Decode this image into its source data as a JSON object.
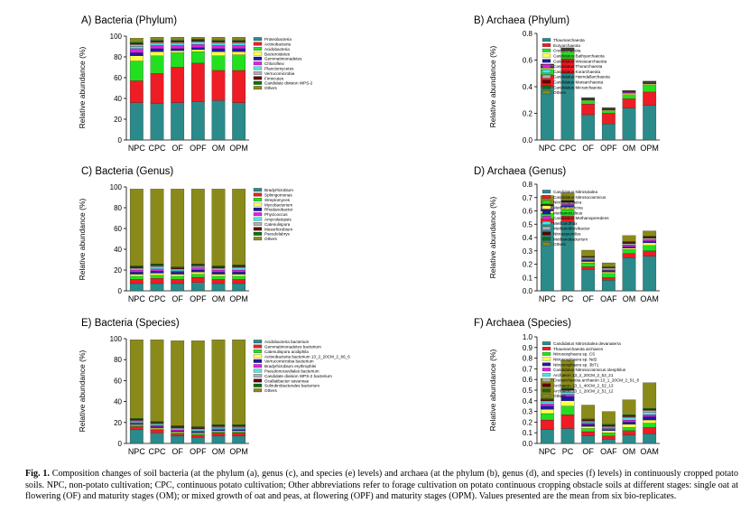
{
  "chart_data": [
    {
      "type": "bar",
      "stacked": true,
      "title": "A) Bacteria (Phylum)",
      "xlabel": "",
      "ylabel": "Relative abundance (%)",
      "categories": [
        "NPC",
        "CPC",
        "OF",
        "OPF",
        "OM",
        "OPM"
      ],
      "ylim": [
        0,
        100
      ],
      "yticks": [
        "0",
        "20",
        "40",
        "60",
        "80",
        "100"
      ],
      "legend_position": "right",
      "series": [
        {
          "name": "Proteobacteria",
          "color": "#2b8a8a",
          "values": [
            36,
            35,
            36,
            37,
            38,
            36
          ]
        },
        {
          "name": "Actinobacteria",
          "color": "#ee1c24",
          "values": [
            21,
            29,
            34,
            37,
            29,
            31
          ]
        },
        {
          "name": "Acidobacteria",
          "color": "#22e020",
          "values": [
            19,
            17,
            14,
            11,
            14,
            15
          ]
        },
        {
          "name": "Bacteroidetes",
          "color": "#ffff4a",
          "values": [
            5,
            4,
            2,
            2,
            4,
            3
          ]
        },
        {
          "name": "Gemmatimonadetes",
          "color": "#1a1aa8",
          "values": [
            3,
            3,
            2,
            2,
            3,
            3
          ]
        },
        {
          "name": "Chloroflexi",
          "color": "#e020e0",
          "values": [
            4,
            3,
            3,
            3,
            3,
            3
          ]
        },
        {
          "name": "Planctomycetes",
          "color": "#48e8e8",
          "values": [
            2,
            2,
            2,
            2,
            2,
            2
          ]
        },
        {
          "name": "Verrucomicrobia",
          "color": "#b0b0b0",
          "values": [
            2,
            1,
            1,
            1,
            1,
            1
          ]
        },
        {
          "name": "Firmicutes",
          "color": "#600000",
          "values": [
            1,
            1,
            1,
            1,
            1,
            1
          ]
        },
        {
          "name": "Candidate division WPS-2",
          "color": "#0e6e10",
          "values": [
            1,
            1,
            1,
            1,
            1,
            1
          ]
        },
        {
          "name": "Others",
          "color": "#8a8a1a",
          "values": [
            4,
            3,
            3,
            2,
            3,
            3
          ]
        }
      ]
    },
    {
      "type": "bar",
      "stacked": true,
      "title": "B) Archaea (Phylum)",
      "xlabel": "",
      "ylabel": "Relative abundance (%)",
      "categories": [
        "NPC",
        "CPC",
        "OF",
        "OPF",
        "OM",
        "OPM"
      ],
      "ylim": [
        0,
        0.8
      ],
      "yticks": [
        "0.0",
        "0.2",
        "0.4",
        "0.6",
        "0.8"
      ],
      "legend_position": "right",
      "series": [
        {
          "name": "Thaumarchaeota",
          "color": "#2b8a8a",
          "values": [
            0.4,
            0.5,
            0.19,
            0.12,
            0.24,
            0.26
          ]
        },
        {
          "name": "Euryarchaeota",
          "color": "#ee1c24",
          "values": [
            0.09,
            0.11,
            0.08,
            0.08,
            0.07,
            0.1
          ]
        },
        {
          "name": "Crenarchaeota",
          "color": "#22e020",
          "values": [
            0.04,
            0.05,
            0.025,
            0.02,
            0.03,
            0.05
          ]
        },
        {
          "name": "Candidatus Bathyarchaeota",
          "color": "#ffff4a",
          "values": [
            0.01,
            0.01,
            0.005,
            0.005,
            0.01,
            0.01
          ]
        },
        {
          "name": "Candidatus Woesearchaeota",
          "color": "#1a1aa8",
          "values": [
            0.01,
            0.005,
            0.005,
            0.005,
            0.005,
            0.005
          ]
        },
        {
          "name": "Candidatus Thorarchaeota",
          "color": "#e020e0",
          "values": [
            0.005,
            0.005,
            0.003,
            0.003,
            0.005,
            0.005
          ]
        },
        {
          "name": "Candidatus Korarchaeota",
          "color": "#48e8e8",
          "values": [
            0.005,
            0.003,
            0.002,
            0.002,
            0.003,
            0.003
          ]
        },
        {
          "name": "Candidatus Heimdallarchaeota",
          "color": "#b0b0b0",
          "values": [
            0.003,
            0.002,
            0.002,
            0.002,
            0.002,
            0.002
          ]
        },
        {
          "name": "Candidatus Marsarchaeota",
          "color": "#600000",
          "values": [
            0.003,
            0.002,
            0.002,
            0.002,
            0.002,
            0.002
          ]
        },
        {
          "name": "Candidatus Micrarchaeota",
          "color": "#0e6e10",
          "values": [
            0.002,
            0.002,
            0.001,
            0.001,
            0.002,
            0.002
          ]
        },
        {
          "name": "Others",
          "color": "#8a8a1a",
          "values": [
            0.002,
            0.003,
            0.002,
            0.002,
            0.003,
            0.003
          ]
        }
      ]
    },
    {
      "type": "bar",
      "stacked": true,
      "title": "C) Bacteria (Genus)",
      "xlabel": "",
      "ylabel": "Relative abundance (%)",
      "categories": [
        "NPC",
        "CPC",
        "OF",
        "OPF",
        "OM",
        "OPM"
      ],
      "ylim": [
        0,
        100
      ],
      "yticks": [
        "0",
        "20",
        "40",
        "60",
        "80",
        "100"
      ],
      "legend_position": "right",
      "series": [
        {
          "name": "Bradyrhizobium",
          "color": "#2b8a8a",
          "values": [
            7,
            7,
            7,
            8,
            7,
            7
          ]
        },
        {
          "name": "Sphingomonas",
          "color": "#ee1c24",
          "values": [
            4,
            5,
            4,
            5,
            4,
            4
          ]
        },
        {
          "name": "Streptomyces",
          "color": "#22e020",
          "values": [
            3,
            3,
            3,
            3,
            3,
            3
          ]
        },
        {
          "name": "Mycobacterium",
          "color": "#ffff4a",
          "values": [
            2,
            2,
            2,
            2,
            2,
            2
          ]
        },
        {
          "name": "Rhodanobacter",
          "color": "#1a1aa8",
          "values": [
            2,
            2,
            2,
            2,
            2,
            2
          ]
        },
        {
          "name": "Phycicoccus",
          "color": "#e020e0",
          "values": [
            2,
            2,
            1,
            2,
            2,
            2
          ]
        },
        {
          "name": "Amycolatopsis",
          "color": "#48e8e8",
          "values": [
            1,
            2,
            1,
            1,
            1,
            2
          ]
        },
        {
          "name": "Catenulispora",
          "color": "#b0b0b0",
          "values": [
            1,
            1,
            1,
            1,
            1,
            1
          ]
        },
        {
          "name": "Mesorhizobium",
          "color": "#600000",
          "values": [
            1,
            1,
            1,
            1,
            1,
            1
          ]
        },
        {
          "name": "Pseudolabrys",
          "color": "#0e6e10",
          "values": [
            1,
            1,
            1,
            1,
            1,
            1
          ]
        },
        {
          "name": "Others",
          "color": "#8a8a1a",
          "values": [
            74,
            72,
            75,
            72,
            74,
            73
          ]
        }
      ]
    },
    {
      "type": "bar",
      "stacked": true,
      "title": "D) Archaea (Genus)",
      "xlabel": "",
      "ylabel": "Relative abundance (%)",
      "categories": [
        "NPC",
        "PC",
        "OF",
        "OAF",
        "OM",
        "OAM"
      ],
      "ylim": [
        0,
        0.8
      ],
      "yticks": [
        "0.0",
        "0.1",
        "0.2",
        "0.3",
        "0.4",
        "0.5",
        "0.6",
        "0.7",
        "0.8"
      ],
      "legend_position": "right",
      "series": [
        {
          "name": "Candidatus Nitrosotalea",
          "color": "#2b8a8a",
          "values": [
            0.51,
            0.52,
            0.16,
            0.08,
            0.25,
            0.26
          ]
        },
        {
          "name": "Candidatus Nitrosocosmicus",
          "color": "#ee1c24",
          "values": [
            0.03,
            0.04,
            0.02,
            0.02,
            0.03,
            0.04
          ]
        },
        {
          "name": "Nitrososphaera",
          "color": "#22e020",
          "values": [
            0.04,
            0.05,
            0.03,
            0.03,
            0.03,
            0.04
          ]
        },
        {
          "name": "Methanosarcina",
          "color": "#ffff4a",
          "values": [
            0.02,
            0.02,
            0.01,
            0.01,
            0.01,
            0.02
          ]
        },
        {
          "name": "Methanoculleus",
          "color": "#1a1aa8",
          "values": [
            0.01,
            0.01,
            0.01,
            0.01,
            0.01,
            0.01
          ]
        },
        {
          "name": "Candidatus Methanoperedens",
          "color": "#e020e0",
          "values": [
            0.01,
            0.01,
            0.005,
            0.005,
            0.01,
            0.01
          ]
        },
        {
          "name": "Methanothrix",
          "color": "#48e8e8",
          "values": [
            0.005,
            0.005,
            0.005,
            0.005,
            0.005,
            0.005
          ]
        },
        {
          "name": "Methanobrevibacter",
          "color": "#b0b0b0",
          "values": [
            0.01,
            0.01,
            0.01,
            0.01,
            0.01,
            0.01
          ]
        },
        {
          "name": "Nitrosopumilus",
          "color": "#600000",
          "values": [
            0.01,
            0.01,
            0.005,
            0.005,
            0.01,
            0.01
          ]
        },
        {
          "name": "Methanobacterium",
          "color": "#0e6e10",
          "values": [
            0.005,
            0.005,
            0.005,
            0.005,
            0.005,
            0.005
          ]
        },
        {
          "name": "Others",
          "color": "#8a8a1a",
          "values": [
            0.065,
            0.055,
            0.045,
            0.03,
            0.045,
            0.04
          ]
        }
      ]
    },
    {
      "type": "bar",
      "stacked": true,
      "title": "E) Bacteria (Species)",
      "xlabel": "",
      "ylabel": "Relative abundance (%)",
      "categories": [
        "NPC",
        "CPC",
        "OF",
        "OPF",
        "OM",
        "OPM"
      ],
      "ylim": [
        0,
        100
      ],
      "yticks": [
        "0",
        "20",
        "40",
        "60",
        "80",
        "100"
      ],
      "legend_position": "right",
      "series": [
        {
          "name": "Acidobacteria bacterium",
          "color": "#2b8a8a",
          "values": [
            13,
            10,
            7,
            6,
            7,
            7
          ]
        },
        {
          "name": "Gemmatimonadetes bacterium",
          "color": "#ee1c24",
          "values": [
            3,
            3,
            2,
            2,
            3,
            3
          ]
        },
        {
          "name": "Catenulispora acidiphila",
          "color": "#22e020",
          "values": [
            1,
            1,
            1,
            1,
            1,
            1
          ]
        },
        {
          "name": "Actinobacteria bacterium 13_2_20CM_2_66_6",
          "color": "#ffff4a",
          "values": [
            1,
            1,
            1,
            1,
            1,
            1
          ]
        },
        {
          "name": "Verrucomicrobia bacterium",
          "color": "#1a1aa8",
          "values": [
            1,
            1,
            1,
            1,
            1,
            1
          ]
        },
        {
          "name": "Bradyrhizobium erythrophlei",
          "color": "#e020e0",
          "values": [
            1,
            1,
            1,
            1,
            1,
            1
          ]
        },
        {
          "name": "Pseudonocardiales bacterium",
          "color": "#48e8e8",
          "values": [
            1,
            1,
            1,
            1,
            1,
            1
          ]
        },
        {
          "name": "Candidate division WPS-2 bacterium",
          "color": "#b0b0b0",
          "values": [
            1,
            1,
            1,
            1,
            1,
            1
          ]
        },
        {
          "name": "Ocallatibacter savannae",
          "color": "#600000",
          "values": [
            1,
            1,
            1,
            1,
            1,
            1
          ]
        },
        {
          "name": "Solirubrobacterales bacterium",
          "color": "#0e6e10",
          "values": [
            1,
            1,
            1,
            1,
            1,
            1
          ]
        },
        {
          "name": "Others",
          "color": "#8a8a1a",
          "values": [
            75,
            78,
            81,
            82,
            81,
            81
          ]
        }
      ]
    },
    {
      "type": "bar",
      "stacked": true,
      "title": "F) Archaea (Species)",
      "xlabel": "",
      "ylabel": "Relative abundance (%)",
      "categories": [
        "NPC",
        "PC",
        "OF",
        "OAF",
        "OM",
        "OAM"
      ],
      "ylim": [
        0,
        1.0
      ],
      "yticks": [
        "0.0",
        "0.1",
        "0.2",
        "0.3",
        "0.4",
        "0.5",
        "0.6",
        "0.7",
        "0.8",
        "0.9",
        "1.0"
      ],
      "legend_position": "right",
      "series": [
        {
          "name": "Candidatus Nitrosotalea devanaterra",
          "color": "#2b8a8a",
          "values": [
            0.13,
            0.14,
            0.07,
            0.04,
            0.08,
            0.09
          ]
        },
        {
          "name": "Thaumarchaeota archaeon",
          "color": "#ee1c24",
          "values": [
            0.09,
            0.13,
            0.04,
            0.03,
            0.04,
            0.06
          ]
        },
        {
          "name": "Nitrososphaera sp. CS",
          "color": "#22e020",
          "values": [
            0.06,
            0.08,
            0.03,
            0.03,
            0.03,
            0.04
          ]
        },
        {
          "name": "Nitrososphaera sp. Nd2",
          "color": "#ffff4a",
          "values": [
            0.04,
            0.05,
            0.02,
            0.02,
            0.03,
            0.03
          ]
        },
        {
          "name": "Nitrososphaera sp. 3bT1",
          "color": "#1a1aa8",
          "values": [
            0.03,
            0.04,
            0.02,
            0.01,
            0.02,
            0.03
          ]
        },
        {
          "name": "Candidatus Nitrosocosmicus oleophilus",
          "color": "#e020e0",
          "values": [
            0.02,
            0.02,
            0.01,
            0.01,
            0.02,
            0.02
          ]
        },
        {
          "name": "Archaeon 13_2_20CM_2_52_21",
          "color": "#48e8e8",
          "values": [
            0.02,
            0.02,
            0.01,
            0.01,
            0.02,
            0.02
          ]
        },
        {
          "name": "Crenarchaeota archaeon 13_1_20CM_2_51_8",
          "color": "#b0b0b0",
          "values": [
            0.01,
            0.02,
            0.01,
            0.01,
            0.01,
            0.02
          ]
        },
        {
          "name": "Archaeon 13_1_40CM_2_52_13",
          "color": "#600000",
          "values": [
            0.01,
            0.01,
            0.01,
            0.01,
            0.01,
            0.01
          ]
        },
        {
          "name": "Archaeon 13_1_20CM_2_51_12",
          "color": "#0e6e10",
          "values": [
            0.01,
            0.01,
            0.01,
            0.01,
            0.01,
            0.01
          ]
        },
        {
          "name": "Others",
          "color": "#8a8a1a",
          "values": [
            0.19,
            0.26,
            0.13,
            0.12,
            0.14,
            0.24
          ]
        }
      ]
    }
  ],
  "caption": {
    "label": "Fig. 1.",
    "text": " Composition changes of soil bacteria (at the phylum (a), genus (c), and species (e) levels) and archaea (at the phylum (b), genus (d), and species (f) levels) in continuously cropped potato soils. NPC, non-potato cultivation; CPC, continuous potato cultivation; Other abbreviations refer to forage cultivation on potato continuous cropping obstacle soils at different stages: single oat at flowering (OF) and maturity stages (OM); or mixed growth of oat and peas, at flowering (OPF) and maturity stages (OPM). Values presented are the mean from six bio-replicates."
  }
}
